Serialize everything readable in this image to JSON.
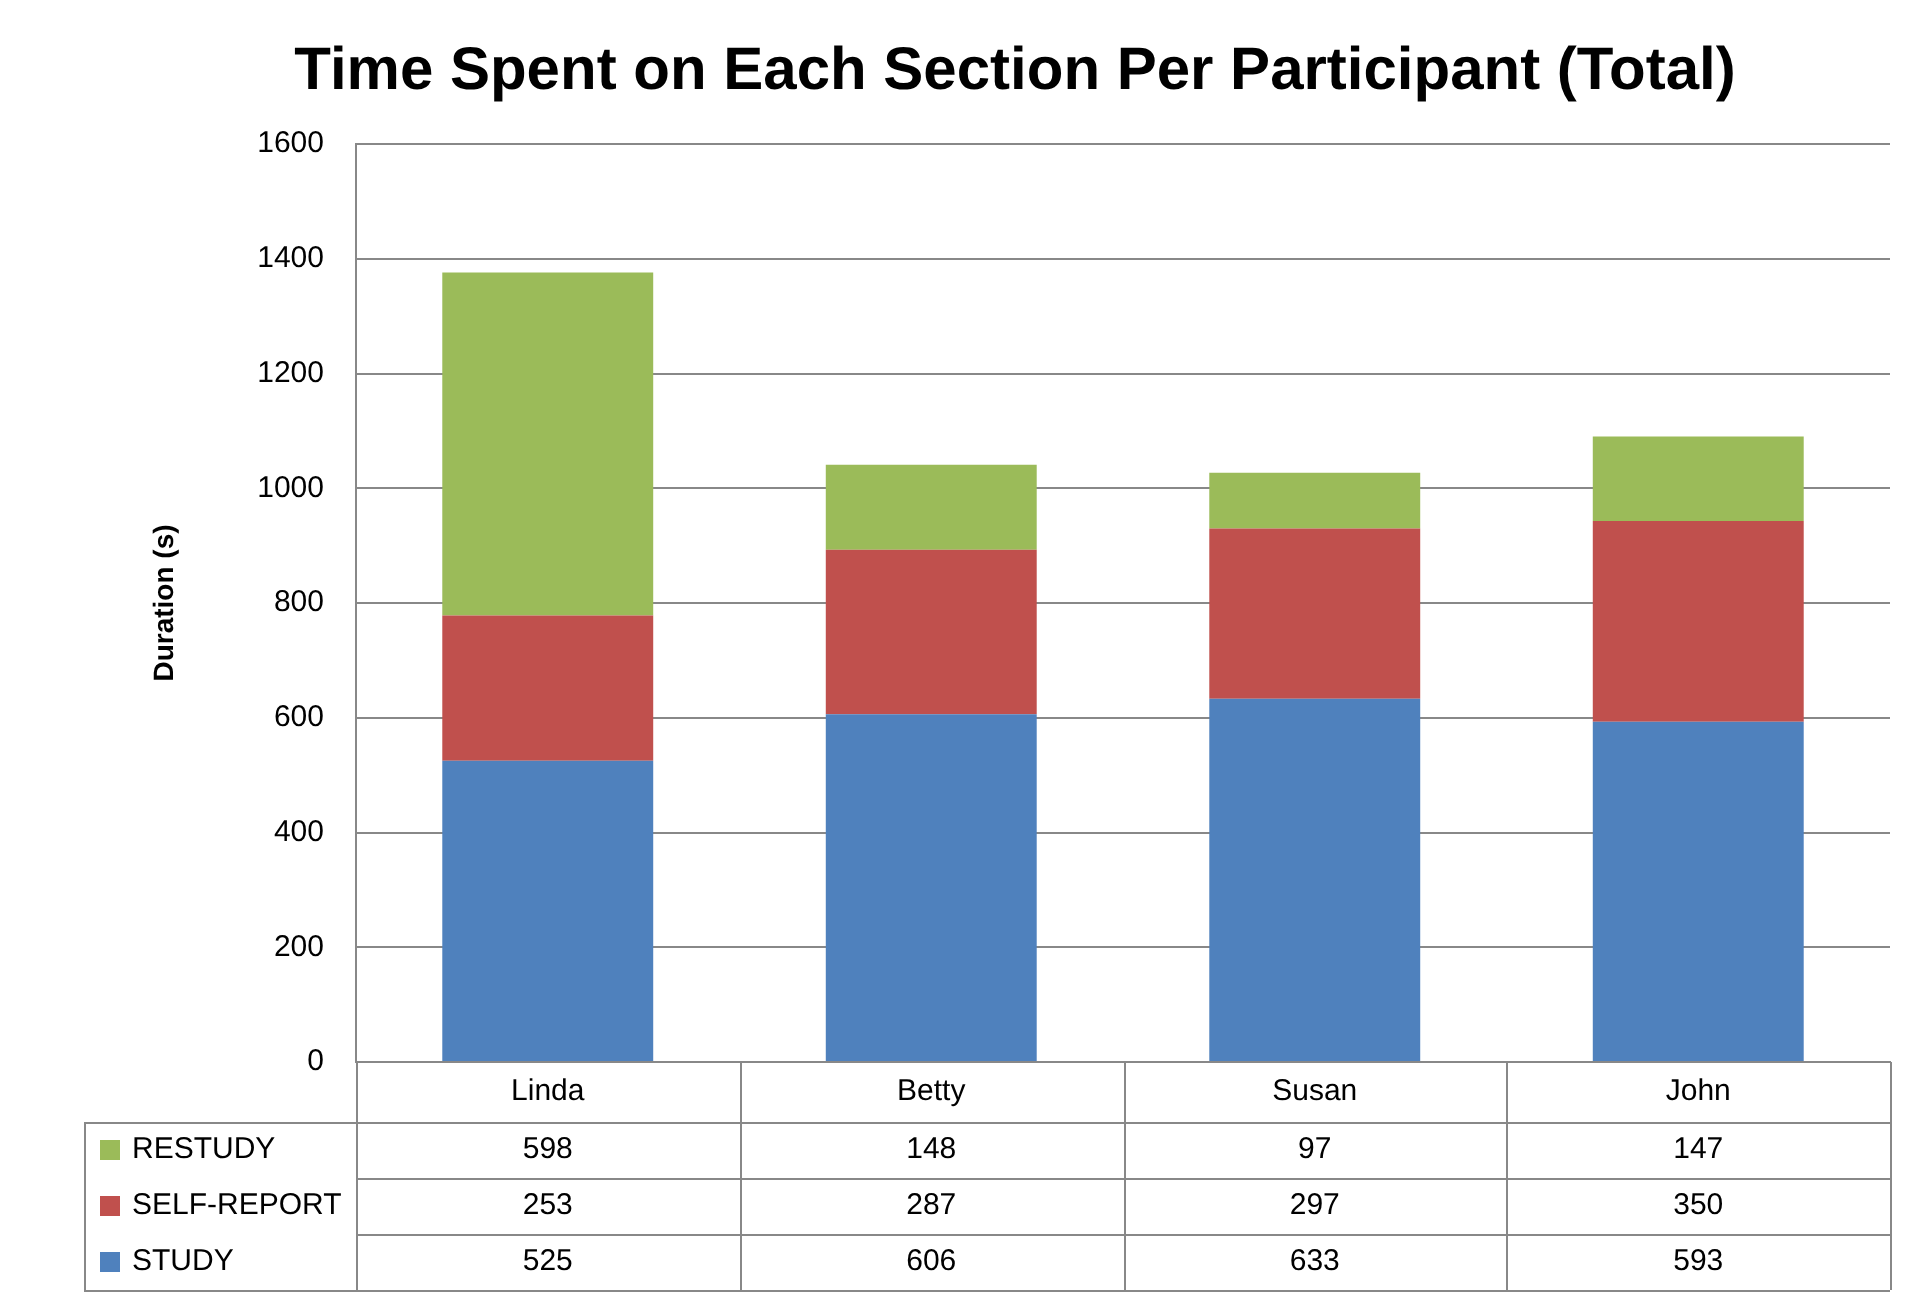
{
  "chart_data": {
    "type": "bar",
    "title": "Time Spent on Each Section Per Participant (Total)",
    "ylabel": "Duration (s)",
    "categories": [
      "Linda",
      "Betty",
      "Susan",
      "John"
    ],
    "series": [
      {
        "name": "STUDY",
        "color": "#4f81bd",
        "values": [
          525,
          606,
          633,
          593
        ]
      },
      {
        "name": "SELF-REPORT",
        "color": "#c0504d",
        "values": [
          253,
          287,
          297,
          350
        ]
      },
      {
        "name": "RESTUDY",
        "color": "#9bbb59",
        "values": [
          598,
          148,
          97,
          147
        ]
      }
    ],
    "stacked": true,
    "ylim": [
      0,
      1600
    ],
    "yticks": [
      0,
      200,
      400,
      600,
      800,
      1000,
      1200,
      1400,
      1600
    ],
    "grid": "y",
    "legend": "bottom",
    "data_labels": true
  }
}
